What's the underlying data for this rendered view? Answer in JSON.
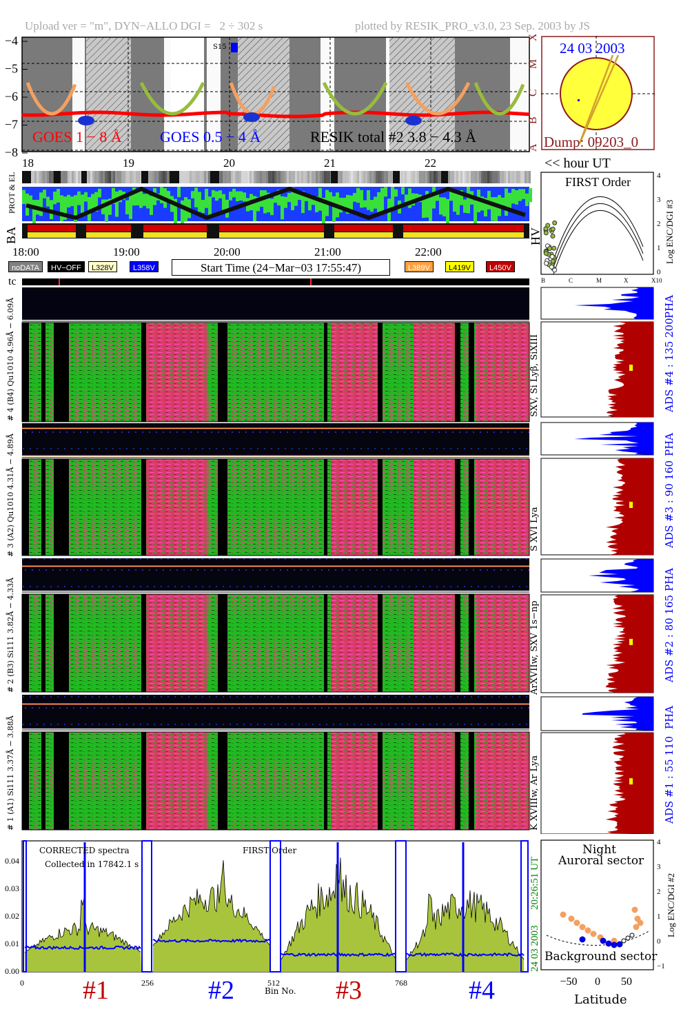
{
  "header": {
    "upload": "Upload ver = \"m\", DYN−ALLO DGI =   2 ÷ 302 s",
    "plotted": "plotted by RESIK_PRO_v3.0, 23 Sep. 2003 by JS"
  },
  "goes": {
    "ylabels": [
      "−4",
      "−5",
      "−6",
      "−7",
      "−8"
    ],
    "class_labels": [
      "X",
      "M",
      "C",
      "B",
      "A"
    ],
    "legend_goes18": "GOES 1 − 8 Å",
    "legend_goes054": "GOES 0.5 − 4 Å",
    "legend_resik": "RESIK total #2  3.8 − 4.3 Å",
    "marker": "S15",
    "colors": {
      "goes18": "#ff0000",
      "goes054": "#0000ff",
      "resik": "#000000",
      "eclipse": "#808080"
    }
  },
  "sun": {
    "date": "24 03 2003",
    "dump": "Dump: 09203_0",
    "colors": {
      "disk": "#ffff3c",
      "border": "#8b1a1a",
      "arrow": "#d4a030"
    }
  },
  "hours": {
    "top": [
      "18",
      "19",
      "20",
      "21",
      "22"
    ],
    "unit": "<< hour UT",
    "bottom": [
      "18:00",
      "19:00",
      "20:00",
      "21:00",
      "22:00"
    ]
  },
  "rows": {
    "protel": "PROT & EL",
    "ba": "BA",
    "hv": "HV",
    "tc": "tc"
  },
  "legend": {
    "nodata": "noDATA",
    "hvoff": "HV−OFF",
    "l328": "L328V",
    "l358": "L358V",
    "start": "Start Time (24−Mar−03 17:55:47)",
    "l389": "L389V",
    "l419": "L419V",
    "l450": "L450V"
  },
  "first_order": {
    "title": "FIRST Order",
    "ylabel": "Log ENC/DGI #3",
    "yticks": [
      "4",
      "3",
      "2",
      "1",
      "0"
    ],
    "xticks": [
      "B",
      "C",
      "M",
      "X",
      "X10"
    ]
  },
  "channels": [
    {
      "spec_label": "# 4 (B4) Qu1010 4.96Å − 6.09Å",
      "lines": "SXV, Si Lyβ, SiXIII",
      "ads": "ADS #4 :   135 200",
      "pha": "PHA"
    },
    {
      "spec_label": "# 3 (A2) Qu1010 4.31Å − 4.89Å",
      "lines": "S XVI Lya",
      "ads": "ADS #3 :   90 160",
      "pha": "PHA"
    },
    {
      "spec_label": "# 2 (B3) Si111 3.82Å − 4.33Å",
      "lines": "ArXVIIw, SXV 1s−np",
      "ads": "ADS #2 :   80 165",
      "pha": "PHA"
    },
    {
      "spec_label": "# 1 (A1) Si111 3.37Å − 3.88Å",
      "lines": "K XVIIIw, Ar Lya",
      "ads": "ADS #1 :   55 110",
      "pha": "PHA"
    }
  ],
  "corrected": {
    "title1": "CORRECTED spectra",
    "title2": "Collected in 17842.1 s",
    "title3": "FIRST Order",
    "yticks": [
      "0.04",
      "0.03",
      "0.02",
      "0.01",
      "0.00"
    ],
    "xticks": [
      "0",
      "256",
      "512",
      "768"
    ],
    "xlabel": "Bin No.",
    "time_stamp": "20:26:51 UT",
    "date_stamp": "24 03 2003",
    "channel_marks": [
      "#1",
      "#2",
      "#3",
      "#4"
    ],
    "colors": {
      "fill": "#a8c43c",
      "line": "#000000",
      "bg": "#0000ff"
    }
  },
  "latitude": {
    "title1": "Night",
    "title2": "Auroral sector",
    "bottom": "Background sector",
    "xlabel": "Latitude",
    "ylabel": "Log ENC/DGI #2",
    "xticks": [
      "−50",
      "0",
      "50"
    ],
    "yticks": [
      "4",
      "3",
      "2",
      "1",
      "0",
      "−1"
    ]
  },
  "chart_data": {
    "type": "line",
    "title": "",
    "xlabel": "Bin No.",
    "ylabel": "",
    "x_ticks": [
      0,
      256,
      512,
      768
    ],
    "ylim": [
      0,
      0.045
    ],
    "series": []
  }
}
